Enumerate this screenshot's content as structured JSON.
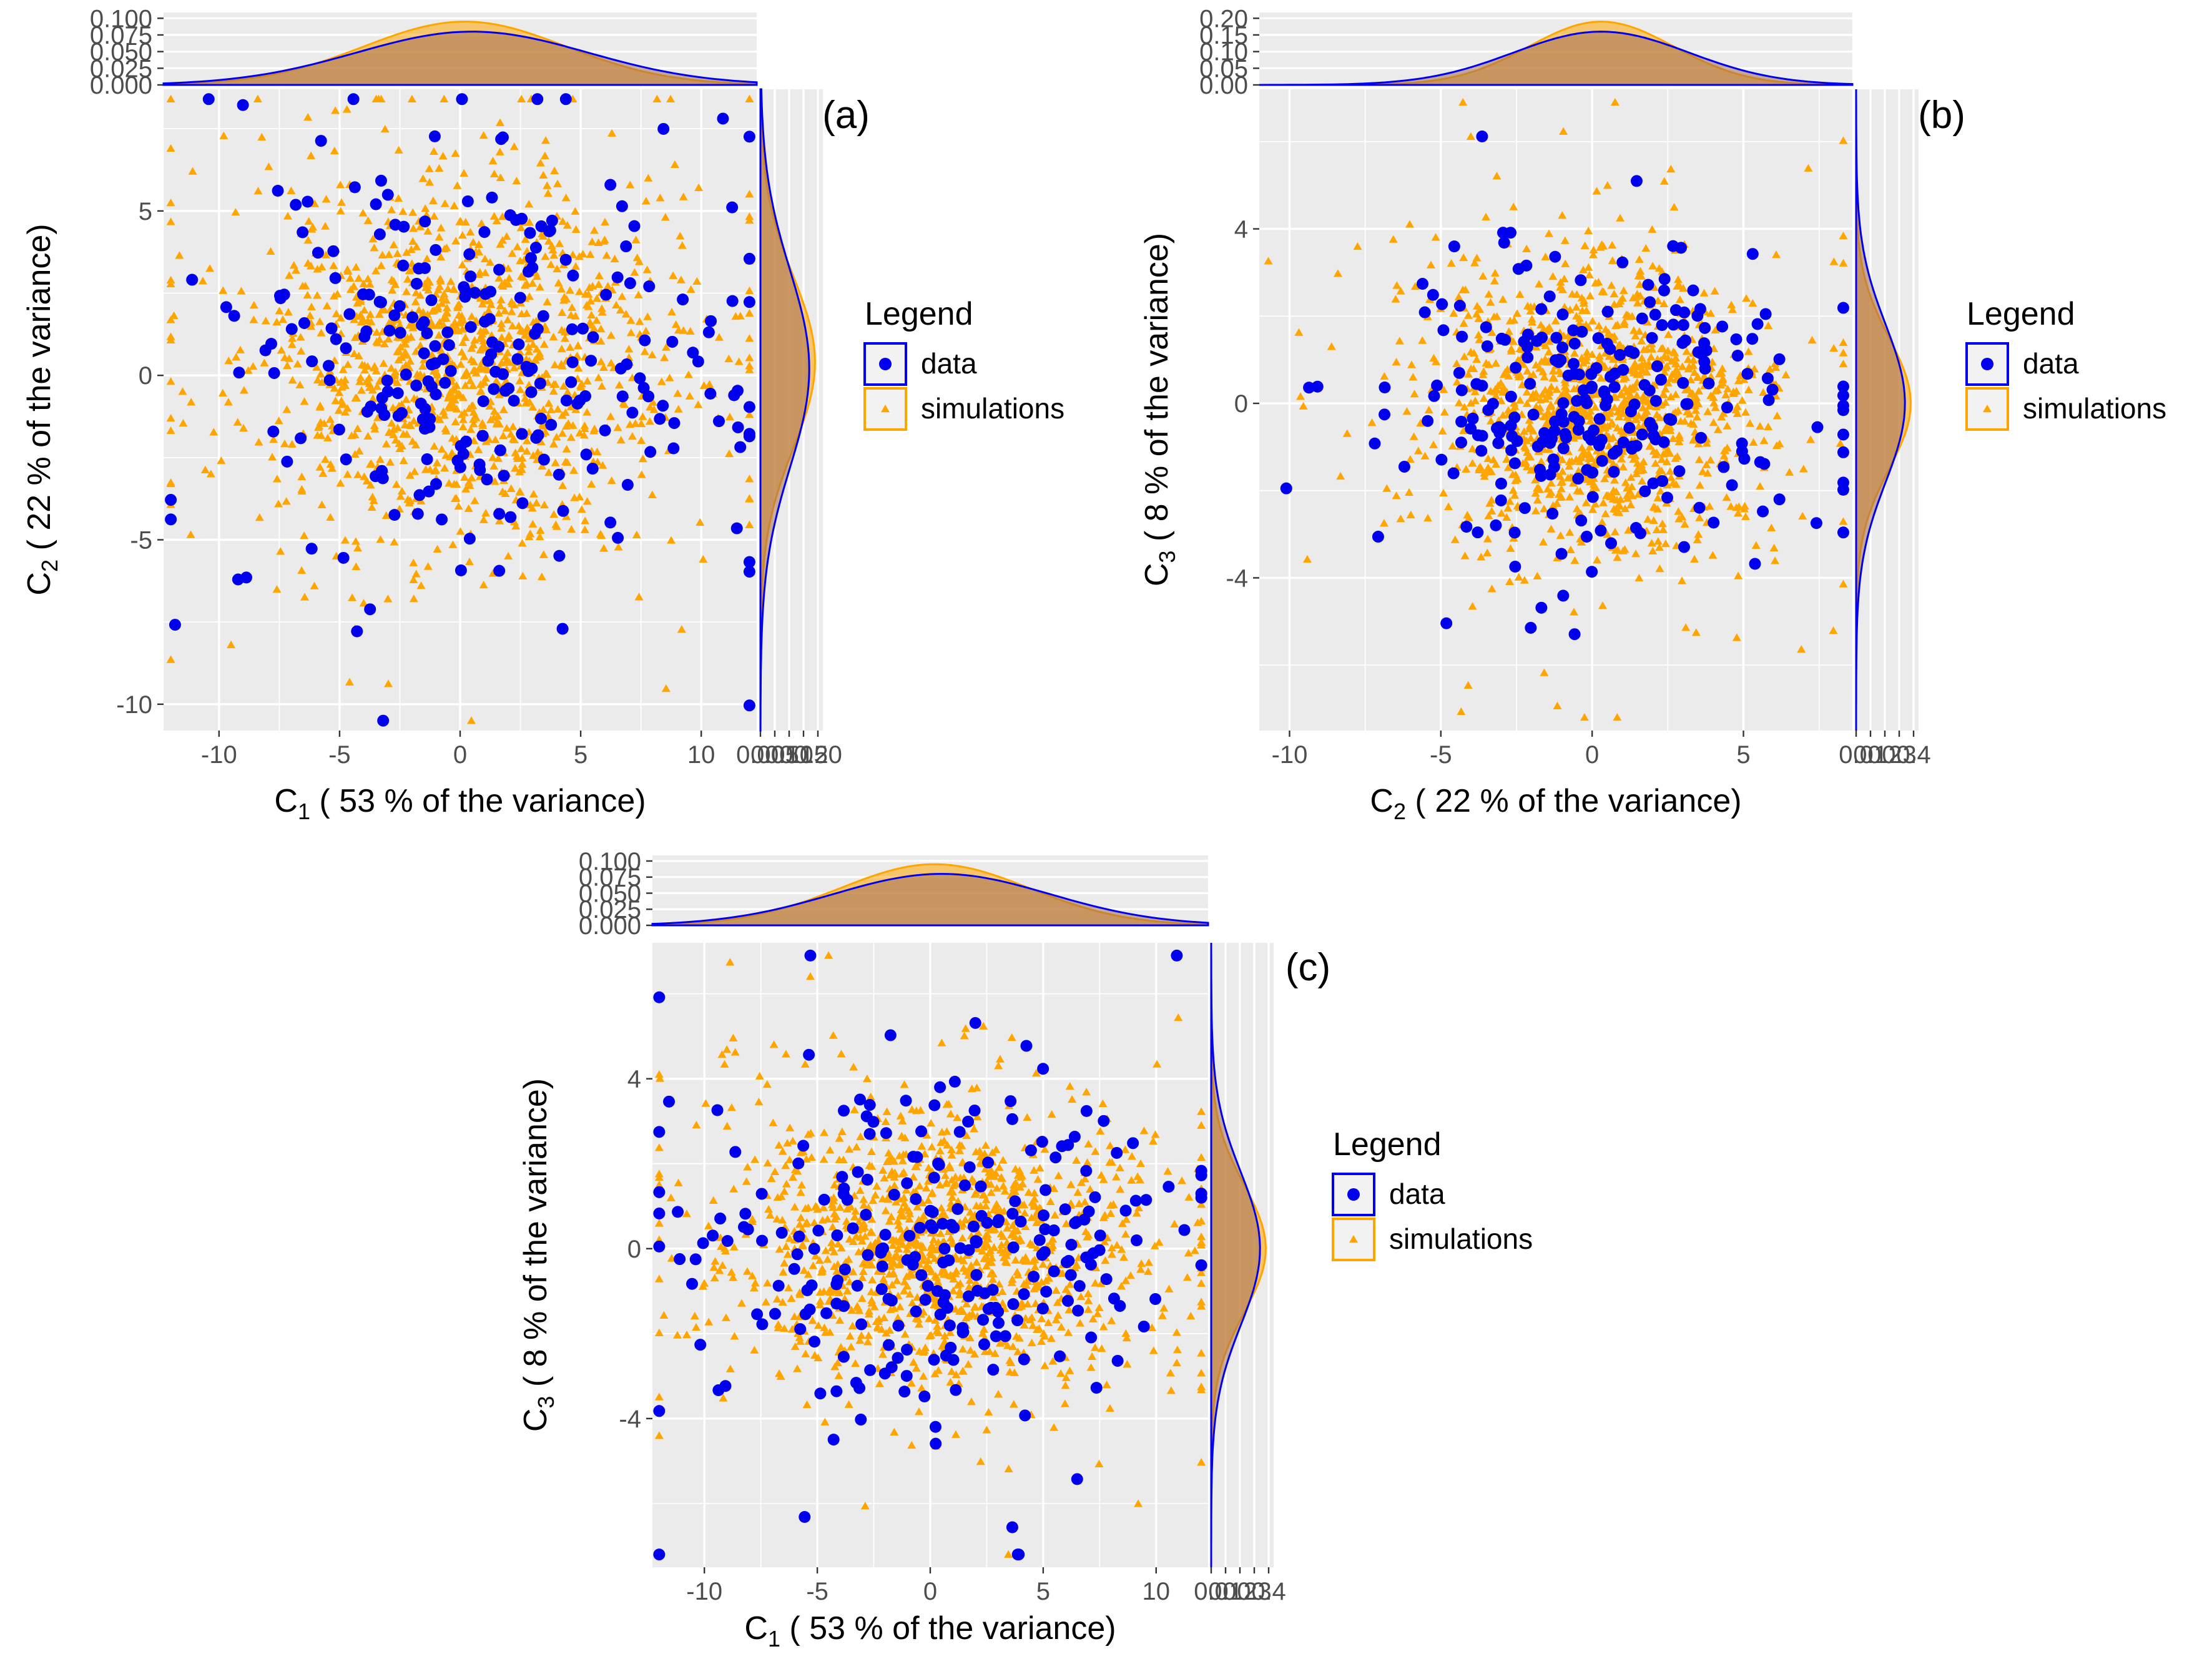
{
  "colors": {
    "data": "#0000ee",
    "simulations": "#ffa500",
    "overlap_fill": "#a36b55",
    "panel_background": "#ebebeb",
    "grid": "#ffffff"
  },
  "legend": {
    "title": "Legend",
    "entries": [
      {
        "label": "data",
        "shape": "circle",
        "color": "#0000ee"
      },
      {
        "label": "simulations",
        "shape": "triangle",
        "color": "#ffa500"
      }
    ]
  },
  "chart_data": [
    {
      "tag": "(a)",
      "type": "scatter",
      "title": "",
      "xlabel": "C",
      "xlabel_sub": "1",
      "xlabel_rest": "  ( 53 % of the variance)",
      "ylabel": "C",
      "ylabel_sub": "2",
      "ylabel_rest": "  ( 22 % of the variance)",
      "xlim": [
        -12.3,
        12.3
      ],
      "ylim": [
        -10.8,
        8.7
      ],
      "x_ticks": [
        -10,
        -5,
        0,
        5,
        10
      ],
      "x_tick_labels": [
        "-10",
        "-5",
        "0",
        "5",
        "10"
      ],
      "y_ticks": [
        -10,
        -5,
        0,
        5
      ],
      "y_tick_labels": [
        "-10",
        "-5",
        "0",
        "5"
      ],
      "top_density_ticks": [
        "0.000",
        "0.025",
        "0.050",
        "0.075",
        "0.100"
      ],
      "right_density_ticks": [
        "0.00",
        "0.05",
        "0.10",
        "0.15",
        "0.20"
      ],
      "grid": true,
      "legend_position": "right",
      "series": [
        {
          "name": "data",
          "n": 260,
          "x_center": 0.5,
          "x_spread": 4.8,
          "y_center": 0.2,
          "y_spread": 3.0
        },
        {
          "name": "simulations",
          "n": 1300,
          "x_center": 0.2,
          "x_spread": 4.2,
          "y_center": 0.4,
          "y_spread": 2.6
        }
      ]
    },
    {
      "tag": "(b)",
      "type": "scatter",
      "title": "",
      "xlabel": "C",
      "xlabel_sub": "2",
      "xlabel_rest": "  ( 22 % of the variance)",
      "ylabel": "C",
      "ylabel_sub": "3",
      "ylabel_rest": "  ( 8 % of the variance)",
      "xlim": [
        -11.0,
        8.6
      ],
      "ylim": [
        -7.5,
        7.2
      ],
      "x_ticks": [
        -10,
        -5,
        0,
        5
      ],
      "x_tick_labels": [
        "-10",
        "-5",
        "0",
        "5"
      ],
      "y_ticks": [
        -4,
        0,
        4
      ],
      "y_tick_labels": [
        "-4",
        "0",
        "4"
      ],
      "top_density_ticks": [
        "0.00",
        "0.05",
        "0.10",
        "0.15",
        "0.20"
      ],
      "right_density_ticks": [
        "0.0",
        "0.1",
        "0.2",
        "0.3",
        "0.4"
      ],
      "grid": true,
      "legend_position": "right",
      "series": [
        {
          "name": "data",
          "n": 260,
          "x_center": 0.3,
          "x_spread": 2.9,
          "y_center": 0.0,
          "y_spread": 1.8
        },
        {
          "name": "simulations",
          "n": 1300,
          "x_center": 0.3,
          "x_spread": 2.4,
          "y_center": 0.0,
          "y_spread": 1.5
        }
      ]
    },
    {
      "tag": "(c)",
      "type": "scatter",
      "title": "",
      "xlabel": "C",
      "xlabel_sub": "1",
      "xlabel_rest": "  ( 53 % of the variance)",
      "ylabel": "C",
      "ylabel_sub": "3",
      "ylabel_rest": "  ( 8 % of the variance)",
      "xlim": [
        -12.3,
        12.3
      ],
      "ylim": [
        -7.5,
        7.2
      ],
      "x_ticks": [
        -10,
        -5,
        0,
        5,
        10
      ],
      "x_tick_labels": [
        "-10",
        "-5",
        "0",
        "5",
        "10"
      ],
      "y_ticks": [
        -4,
        0,
        4
      ],
      "y_tick_labels": [
        "-4",
        "0",
        "4"
      ],
      "top_density_ticks": [
        "0.000",
        "0.025",
        "0.050",
        "0.075",
        "0.100"
      ],
      "right_density_ticks": [
        "0.0",
        "0.1",
        "0.2",
        "0.3",
        "0.4"
      ],
      "grid": true,
      "legend_position": "right",
      "series": [
        {
          "name": "data",
          "n": 260,
          "x_center": 0.5,
          "x_spread": 4.8,
          "y_center": 0.0,
          "y_spread": 1.8
        },
        {
          "name": "simulations",
          "n": 1300,
          "x_center": 0.2,
          "x_spread": 4.2,
          "y_center": 0.0,
          "y_spread": 1.5
        }
      ]
    }
  ]
}
